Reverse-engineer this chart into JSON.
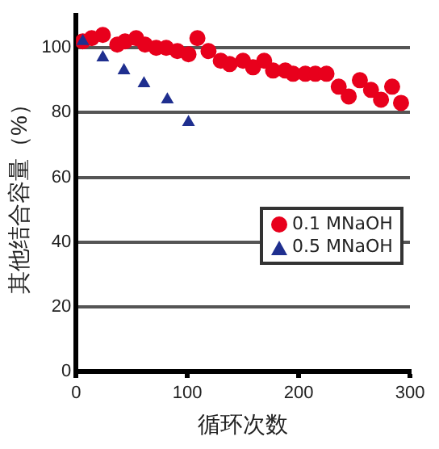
{
  "chart_data": {
    "type": "scatter",
    "xlabel": "循环次数",
    "ylabel": "其他结合容量（%）",
    "xlim": [
      0,
      300
    ],
    "xticks": [
      0,
      100,
      200,
      300
    ],
    "ylim": [
      0,
      110
    ],
    "yticks": [
      0,
      20,
      40,
      60,
      80,
      100
    ],
    "grid": "y",
    "legend": "right",
    "series": [
      {
        "name": "0.1 MNaOH",
        "color": "#e8001c",
        "marker": "circle",
        "x": [
          6,
          14,
          24,
          37,
          44,
          54,
          62,
          72,
          81,
          91,
          101,
          109,
          119,
          130,
          138,
          150,
          159,
          169,
          177,
          188,
          195,
          206,
          215,
          225,
          236,
          245,
          255,
          265,
          274,
          284,
          292
        ],
        "values": [
          102,
          103,
          104,
          101,
          102,
          103,
          101,
          100,
          100,
          99,
          98,
          103,
          99,
          96,
          95,
          96,
          94,
          96,
          93,
          93,
          92,
          92,
          92,
          92,
          88,
          85,
          90,
          87,
          84,
          88,
          83
        ]
      },
      {
        "name": "0.5 MNaOH",
        "color": "#1f2f8f",
        "marker": "triangle",
        "x": [
          6,
          24,
          43,
          61,
          82,
          101
        ],
        "values": [
          102,
          97,
          93,
          89,
          84,
          77
        ]
      }
    ]
  }
}
